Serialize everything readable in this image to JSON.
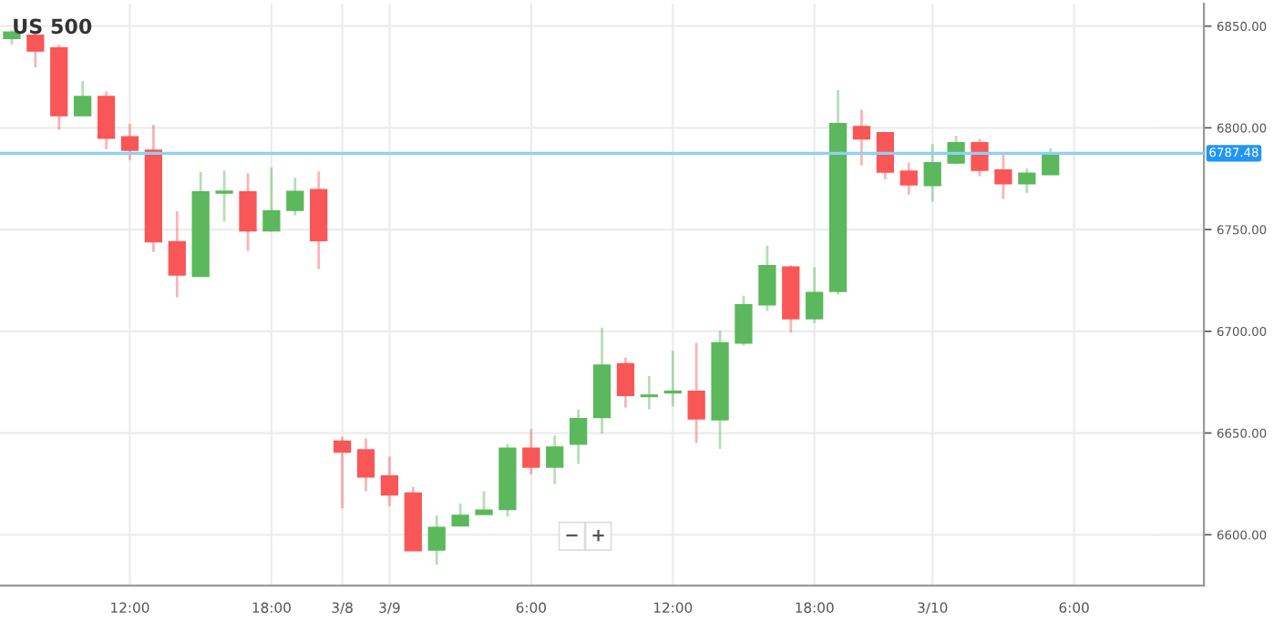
{
  "chart_data": {
    "type": "candlestick",
    "title": "US 500",
    "categories": [
      null,
      null,
      null,
      null,
      null,
      "12:00",
      null,
      null,
      null,
      null,
      null,
      "18:00",
      null,
      null,
      "3/8",
      null,
      "3/9",
      null,
      null,
      null,
      null,
      null,
      "6:00",
      null,
      null,
      null,
      null,
      null,
      "12:00",
      null,
      null,
      null,
      null,
      null,
      "18:00",
      null,
      null,
      null,
      null,
      "3/10",
      null,
      null,
      null,
      null,
      null,
      "6:00",
      null,
      null,
      null,
      null,
      null
    ],
    "ohlc": [
      [
        6844,
        6848,
        6841,
        6847
      ],
      [
        6845.5,
        6847.6,
        6829.7,
        6837.8
      ],
      [
        6839.3,
        6840.8,
        6799,
        6806
      ],
      [
        6806,
        6823,
        6806,
        6815.4
      ],
      [
        6815.4,
        6817.9,
        6789.5,
        6794.9
      ],
      [
        6795.5,
        6802,
        6784.2,
        6789
      ],
      [
        6789,
        6801.5,
        6739,
        6744
      ],
      [
        6744,
        6759,
        6716.7,
        6727.7
      ],
      [
        6727,
        6778.3,
        6727,
        6768.5
      ],
      [
        6768,
        6779,
        6754,
        6768.8
      ],
      [
        6768.5,
        6777.7,
        6739.5,
        6749.4
      ],
      [
        6749.4,
        6780.6,
        6749,
        6759.2
      ],
      [
        6759.5,
        6775.6,
        6757,
        6768.7
      ],
      [
        6769.6,
        6778.6,
        6730.6,
        6744.6
      ],
      [
        6646,
        6648.2,
        6613,
        6640.7
      ],
      [
        6641.7,
        6647.3,
        6621.4,
        6628.5
      ],
      [
        6628.8,
        6638.4,
        6614,
        6619.6
      ],
      [
        6620.5,
        6623.5,
        6592,
        6592.2
      ],
      [
        6592.5,
        6609.5,
        6585.4,
        6603.5
      ],
      [
        6604.4,
        6615.4,
        6604,
        6609.5
      ],
      [
        6610,
        6621.4,
        6610,
        6612
      ],
      [
        6612.5,
        6644.6,
        6609,
        6642.5
      ],
      [
        6642.5,
        6652,
        6629.7,
        6633.3
      ],
      [
        6633.3,
        6648.8,
        6625,
        6643
      ],
      [
        6644.6,
        6661.6,
        6634.8,
        6657
      ],
      [
        6657.7,
        6701.8,
        6649.7,
        6683.3
      ],
      [
        6684,
        6687,
        6662.5,
        6668.5
      ],
      [
        6668,
        6678,
        6661.6,
        6668.6
      ],
      [
        6669.8,
        6690.4,
        6663,
        6670.5
      ],
      [
        6670.5,
        6694.3,
        6645,
        6657
      ],
      [
        6656.5,
        6700.3,
        6642.2,
        6694.3
      ],
      [
        6694.3,
        6717.5,
        6693,
        6713
      ],
      [
        6713,
        6742,
        6710,
        6732.2
      ],
      [
        6731.5,
        6732.5,
        6699.4,
        6706.2
      ],
      [
        6706.2,
        6731.5,
        6704,
        6719
      ],
      [
        6719.6,
        6818.5,
        6718,
        6802
      ],
      [
        6800.6,
        6808.9,
        6781.5,
        6794.6
      ],
      [
        6797.6,
        6797.6,
        6774.7,
        6778.3
      ],
      [
        6778.6,
        6782.8,
        6767.2,
        6772
      ],
      [
        6771.7,
        6792,
        6763.7,
        6782.8
      ],
      [
        6782.8,
        6796.2,
        6782,
        6792.6
      ],
      [
        6792.6,
        6794.6,
        6776.2,
        6779.2
      ],
      [
        6779.2,
        6787.5,
        6765,
        6772.6
      ],
      [
        6772.6,
        6780,
        6768,
        6777.7
      ],
      [
        6777,
        6790,
        6777,
        6787.5
      ],
      null,
      null,
      null,
      null,
      null,
      null
    ],
    "colors": [
      "#5cb85c",
      "#f95757",
      "#f95757",
      "#5cb85c",
      "#f95757",
      "#f95757",
      "#f95757",
      "#f95757",
      "#5cb85c",
      "#5cb85c",
      "#f95757",
      "#5cb85c",
      "#5cb85c",
      "#f95757",
      "#f95757",
      "#f95757",
      "#f95757",
      "#f95757",
      "#5cb85c",
      "#5cb85c",
      "#5cb85c",
      "#5cb85c",
      "#f95757",
      "#5cb85c",
      "#5cb85c",
      "#5cb85c",
      "#f95757",
      "#5cb85c",
      "#5cb85c",
      "#f95757",
      "#5cb85c",
      "#5cb85c",
      "#5cb85c",
      "#f95757",
      "#5cb85c",
      "#5cb85c",
      "#f95757",
      "#f95757",
      "#f95757",
      "#5cb85c",
      "#5cb85c",
      "#f95757",
      "#f95757",
      "#5cb85c",
      "#5cb85c",
      null,
      null,
      null,
      null,
      null,
      null
    ],
    "ylim": [
      6575,
      6861
    ],
    "yticks": [
      {
        "value": 6600,
        "label": "6600.00"
      },
      {
        "value": 6650,
        "label": "6650.00"
      },
      {
        "value": 6700,
        "label": "6700.00"
      },
      {
        "value": 6750,
        "label": "6750.00"
      },
      {
        "value": 6800,
        "label": "6800.00"
      },
      {
        "value": 6850,
        "label": "6850.00"
      }
    ],
    "ref_lines": [
      {
        "axis": "y",
        "value": 6787.48,
        "label": "6787.48",
        "color": "#8fd0f5"
      }
    ],
    "grid": true,
    "annotations": [
      "−",
      "+"
    ]
  }
}
